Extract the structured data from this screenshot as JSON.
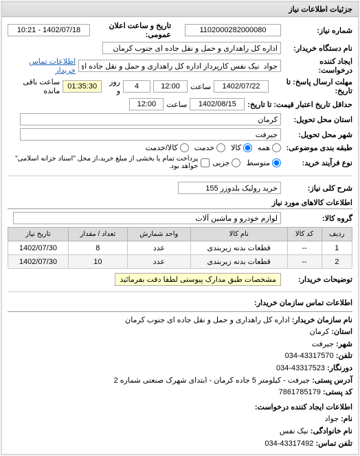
{
  "panel_title": "جزئیات اطلاعات نیاز",
  "fields": {
    "need_number_label": "شماره نیاز:",
    "need_number": "1102000282000080",
    "announce_label": "تاریخ و ساعت اعلان عمومی:",
    "announce_value": "1402/07/18 - 10:21",
    "buyer_org_label": "نام دستگاه خریدار:",
    "buyer_org": "اداره کل راهداری و حمل و نقل جاده ای جنوب کرمان",
    "creator_label": "ایجاد کننده درخواست:",
    "creator": "جواد  نیک نفس کارپرداز اداره کل راهداری و حمل و نقل جاده ای جنوب کرمان",
    "buyer_contact_link": "اطلاعات تماس خریدار",
    "deadline_answer_label": "مهلت ارسال پاسخ: تا تاریخ:",
    "deadline_answer_date": "1402/07/22",
    "deadline_answer_time_label": "ساعت",
    "deadline_answer_time": "12:00",
    "days_box": "4",
    "days_and": "روز و",
    "remain_time": "01:35:30",
    "remain_label": "ساعت باقی مانده",
    "validity_label": "حداقل تاریخ اعتبار قیمت: تا تاریخ:",
    "validity_date": "1402/08/15",
    "validity_time_label": "ساعت",
    "validity_time": "12:00",
    "province_label": "استان محل تحویل:",
    "province": "کرمان",
    "city_label": "شهر محل تحویل:",
    "city": "جیرفت",
    "subject_class_label": "طبقه بندی موضوعی:",
    "subject_radio": [
      {
        "label": "همه",
        "value": "all"
      },
      {
        "label": "کالا",
        "value": "goods"
      },
      {
        "label": "خدمت",
        "value": "service"
      },
      {
        "label": "کالا/خدمت",
        "value": "both"
      }
    ],
    "subject_selected": "goods",
    "process_label": "نوع فرآیند خرید:",
    "process_radio": [
      {
        "label": "متوسط",
        "value": "mid"
      },
      {
        "label": "جزیی",
        "value": "minor"
      }
    ],
    "process_selected": "mid",
    "process_note": "پرداخت تمام یا بخشی از مبلغ خرید،از محل \"اسناد خزانه اسلامی\" خواهد بود."
  },
  "need_summary": {
    "label": "شرح کلی نیاز:",
    "value": "خرید رولیک بلدوزر 155"
  },
  "goods_section": {
    "title": "اطلاعات کالاهای مورد نیاز",
    "group_label": "گروه کالا:",
    "group_value": "لوازم خودرو و ماشین آلات",
    "columns": [
      "ردیف",
      "کد کالا",
      "نام کالا",
      "واحد شمارش",
      "تعداد / مقدار",
      "تاریخ نیاز"
    ],
    "rows": [
      [
        "1",
        "--",
        "قطعات بدنه زیربندی",
        "عدد",
        "8",
        "1402/07/30"
      ],
      [
        "2",
        "--",
        "قطعات بدنه زیربندی",
        "عدد",
        "10",
        "1402/07/30"
      ]
    ],
    "buyer_notes_label": "توضیحات خریدار:",
    "buyer_notes": "مشخصات طبق مدارک پیوستی  لطفا دقت بفرمائید"
  },
  "contact": {
    "title": "اطلاعات تماس سازمان خریدار:",
    "org_name_label": "نام سازمان خریدار:",
    "org_name": "اداره کل راهداری و حمل و نقل جاده ای جنوب کرمان",
    "province_label": "استان:",
    "province": "کرمان",
    "city_label": "شهر:",
    "city": "جیرفت",
    "phone_label": "تلفن:",
    "phone": "43317570-034",
    "fax_label": "دورنگار:",
    "fax": "43317523-034",
    "postal_address_label": "آدرس پستی:",
    "postal_address": "جیرفت - کیلومتر 5 جاده کرمان - ابتدای شهرک صنعتی شماره 2",
    "postal_code_label": "کد پستی:",
    "postal_code": "7861785179",
    "requester_title": "اطلاعات ایجاد کننده درخواست:",
    "first_name_label": "نام:",
    "first_name": "جواد",
    "last_name_label": "نام خانوادگی:",
    "last_name": "نیک نفس",
    "contact_phone_label": "تلفن تماس:",
    "contact_phone": "43317492-034"
  },
  "colors": {
    "panel_border": "#c8c8c8",
    "header_bg_top": "#e8e8e8",
    "header_bg_bottom": "#d8d8d8",
    "link": "#1a5fb4",
    "highlight_bg": "#ffffcc",
    "th_bg": "#dcdcdc",
    "row_alt": "#f4f4f4"
  }
}
